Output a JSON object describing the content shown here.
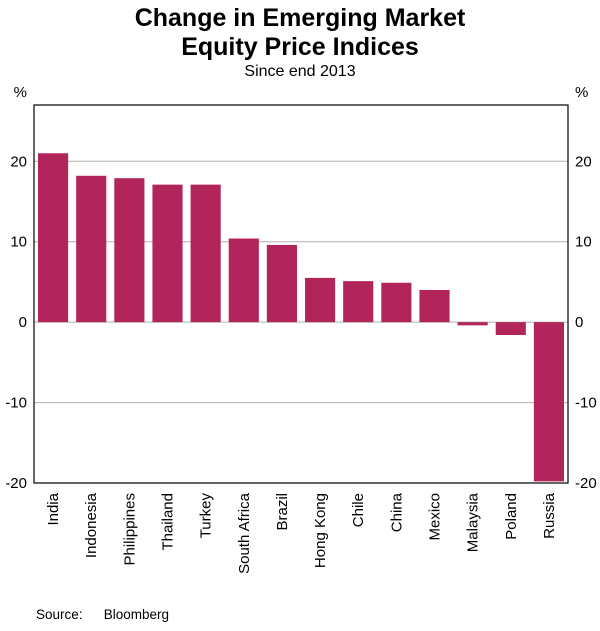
{
  "title_line1": "Change in Emerging Market",
  "title_line2": "Equity Price Indices",
  "subtitle": "Since end 2013",
  "axis_unit_left": "%",
  "axis_unit_right": "%",
  "source_label": "Source:",
  "source_value": "Bloomberg",
  "chart_data": {
    "type": "bar",
    "title": "Change in Emerging Market Equity Price Indices",
    "subtitle": "Since end 2013",
    "categories": [
      "India",
      "Indonesia",
      "Philippines",
      "Thailand",
      "Turkey",
      "South Africa",
      "Brazil",
      "Hong Kong",
      "Chile",
      "China",
      "Mexico",
      "Malaysia",
      "Poland",
      "Russia"
    ],
    "values": [
      21.0,
      18.2,
      17.9,
      17.1,
      17.1,
      10.4,
      9.6,
      5.5,
      5.1,
      4.9,
      4.0,
      -0.4,
      -1.6,
      -19.8
    ],
    "xlabel": "",
    "ylabel": "%",
    "ylim": [
      -20,
      27
    ],
    "yticks": [
      -20,
      -10,
      0,
      10,
      20
    ],
    "bar_color": "#b2255a",
    "grid_color": "#b0b0b0",
    "frame_color": "#000000",
    "grid": true,
    "legend": false
  }
}
